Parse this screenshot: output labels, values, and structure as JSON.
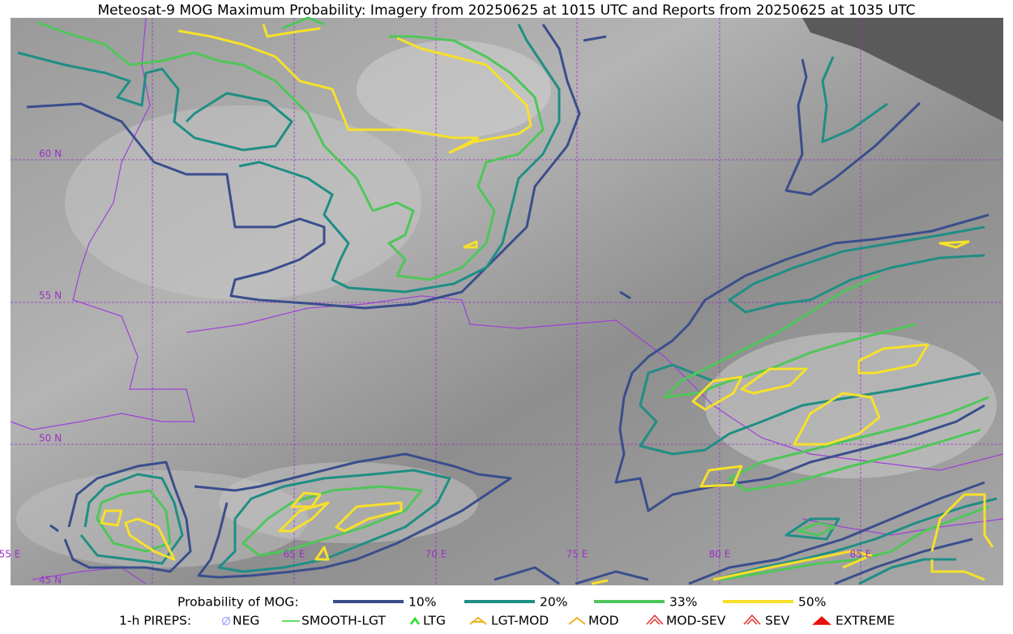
{
  "title": "Meteosat-9 MOG Maximum Probability: Imagery from 20250625 at 1015 UTC and Reports from 20250625 at 1035 UTC",
  "map": {
    "lat_labels": [
      "60 N",
      "55 N",
      "50 N",
      "45 N"
    ],
    "lon_labels": [
      "55 E",
      "65 E",
      "70 E",
      "75 E",
      "80 E",
      "85 E"
    ]
  },
  "legend": {
    "probability": {
      "label": "Probability of MOG:",
      "items": [
        {
          "label": "10%",
          "color": "#3a4e8c"
        },
        {
          "label": "20%",
          "color": "#1f8e85"
        },
        {
          "label": "33%",
          "color": "#4fc65a"
        },
        {
          "label": "50%",
          "color": "#f7e02a"
        }
      ]
    },
    "pireps": {
      "label": "1-h PIREPS:",
      "items": [
        "NEG",
        "SMOOTH-LGT",
        "LTG",
        "LGT-MOD",
        "MOD",
        "MOD-SEV",
        "SEV",
        "EXTREME"
      ]
    }
  }
}
